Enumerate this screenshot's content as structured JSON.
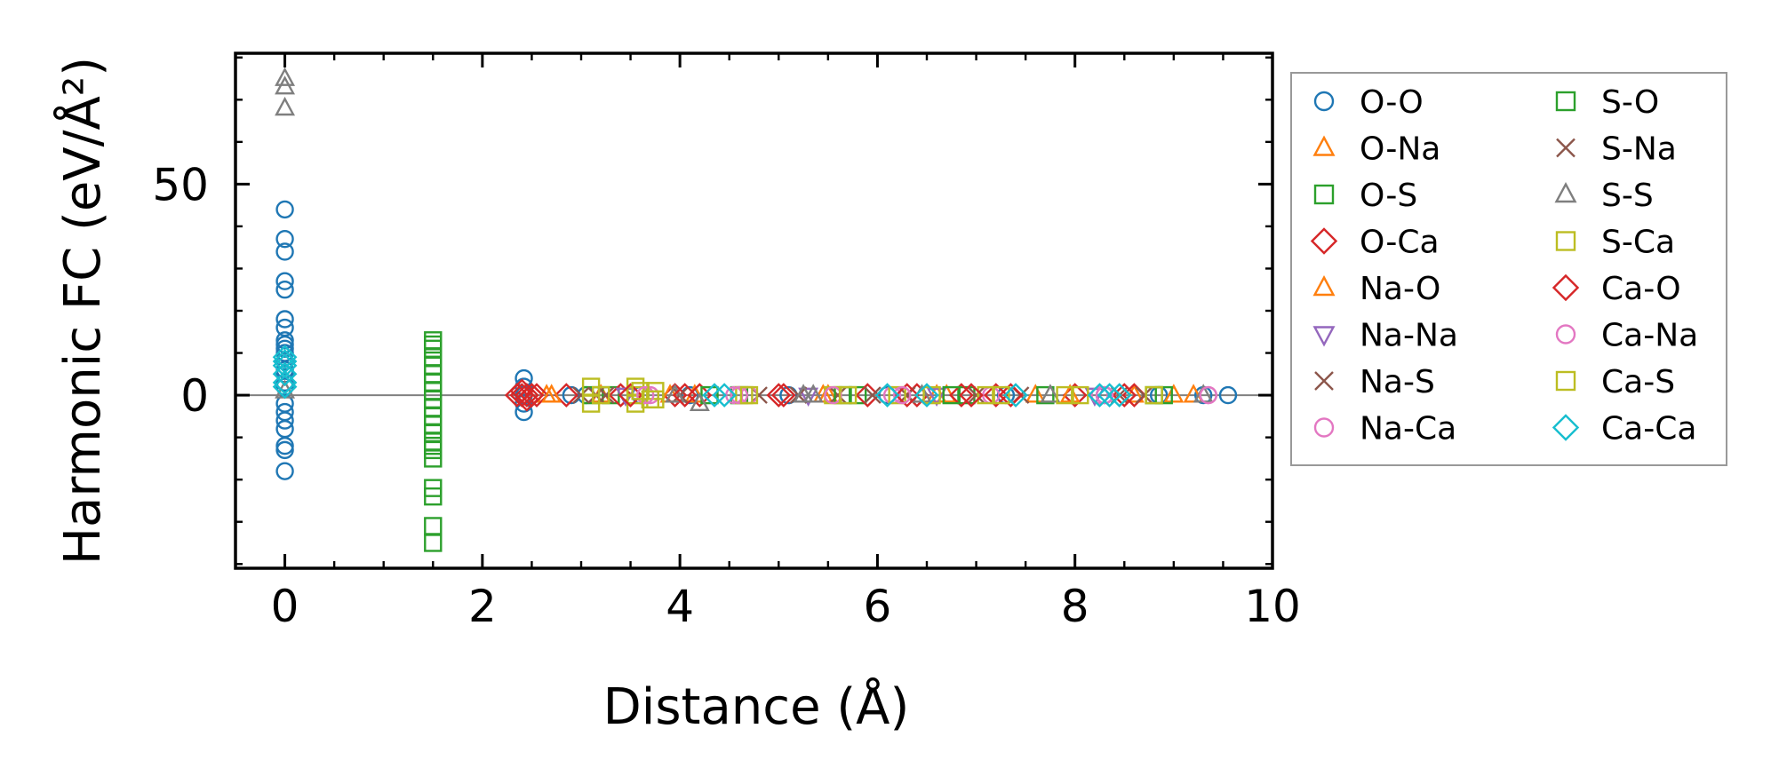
{
  "chart_data": {
    "type": "scatter",
    "xlabel": "Distance (Å)",
    "ylabel": "Harmonic FC (eV/Å²)",
    "xlim": [
      -0.5,
      10
    ],
    "ylim": [
      -41,
      81
    ],
    "xticks": [
      0,
      2,
      4,
      6,
      8,
      10
    ],
    "yticks": [
      0,
      50
    ],
    "grid": false,
    "legend_placement": "right, outside plot",
    "zero_line": true,
    "series": [
      {
        "name": "O-O",
        "marker": "circle",
        "color": "#1f77b4",
        "points": [
          [
            0,
            44
          ],
          [
            0,
            37
          ],
          [
            0,
            34
          ],
          [
            0,
            27
          ],
          [
            0,
            25
          ],
          [
            0,
            18
          ],
          [
            0,
            16
          ],
          [
            0,
            13
          ],
          [
            0,
            12
          ],
          [
            0,
            11
          ],
          [
            0,
            10
          ],
          [
            0,
            8
          ],
          [
            0,
            6
          ],
          [
            0,
            5
          ],
          [
            0,
            3
          ],
          [
            0,
            2
          ],
          [
            0,
            -2
          ],
          [
            0,
            -4
          ],
          [
            0,
            -6
          ],
          [
            0,
            -8
          ],
          [
            0,
            -12
          ],
          [
            0,
            -13
          ],
          [
            0,
            -18
          ],
          [
            2.42,
            4
          ],
          [
            2.42,
            2
          ],
          [
            2.42,
            0
          ],
          [
            2.42,
            -2
          ],
          [
            2.42,
            -4
          ],
          [
            2.9,
            0
          ],
          [
            3.05,
            0
          ],
          [
            3.6,
            0
          ],
          [
            4.1,
            0
          ],
          [
            5.1,
            0
          ],
          [
            6.1,
            0
          ],
          [
            7.3,
            0
          ],
          [
            8.3,
            0
          ],
          [
            8.85,
            0
          ],
          [
            9.3,
            0
          ],
          [
            9.55,
            0
          ]
        ]
      },
      {
        "name": "O-Na",
        "marker": "triangle-up",
        "color": "#ff7f0e",
        "points": [
          [
            2.65,
            0
          ],
          [
            3.2,
            0
          ],
          [
            4.15,
            0
          ],
          [
            5.45,
            0
          ],
          [
            6.7,
            0
          ],
          [
            7.6,
            0
          ],
          [
            8.6,
            0
          ],
          [
            9.2,
            0
          ]
        ]
      },
      {
        "name": "O-S",
        "marker": "square",
        "color": "#2ca02c",
        "points": [
          [
            1.5,
            13
          ],
          [
            1.5,
            11
          ],
          [
            1.5,
            9
          ],
          [
            1.5,
            7
          ],
          [
            1.5,
            5
          ],
          [
            1.5,
            3
          ],
          [
            1.5,
            1
          ],
          [
            1.5,
            -1
          ],
          [
            1.5,
            -3
          ],
          [
            1.5,
            -5
          ],
          [
            1.5,
            -7
          ],
          [
            1.5,
            -9
          ],
          [
            1.5,
            -11
          ],
          [
            1.5,
            -13
          ],
          [
            1.5,
            -15
          ],
          [
            1.5,
            -22
          ],
          [
            1.5,
            -24
          ],
          [
            1.5,
            -31
          ],
          [
            1.5,
            -35
          ],
          [
            3.3,
            0
          ],
          [
            4.6,
            0
          ],
          [
            5.8,
            0
          ],
          [
            6.9,
            0
          ],
          [
            7.7,
            0
          ],
          [
            8.8,
            0
          ]
        ]
      },
      {
        "name": "O-Ca",
        "marker": "diamond",
        "color": "#d62728",
        "points": [
          [
            2.35,
            0
          ],
          [
            2.4,
            0
          ],
          [
            2.45,
            0
          ],
          [
            2.5,
            0
          ],
          [
            2.55,
            0
          ],
          [
            2.85,
            0
          ],
          [
            3.4,
            0
          ],
          [
            3.95,
            0
          ],
          [
            4.2,
            0
          ],
          [
            5.0,
            0
          ],
          [
            5.9,
            0
          ],
          [
            6.4,
            0
          ],
          [
            6.85,
            0
          ],
          [
            7.2,
            0
          ],
          [
            8.0,
            0
          ],
          [
            8.6,
            0
          ]
        ]
      },
      {
        "name": "Na-O",
        "marker": "triangle-up",
        "color": "#ff7f0e",
        "points": [
          [
            2.7,
            0
          ],
          [
            3.9,
            0
          ],
          [
            5.5,
            0
          ],
          [
            6.6,
            0
          ],
          [
            7.95,
            0
          ],
          [
            9.0,
            0
          ]
        ]
      },
      {
        "name": "Na-Na",
        "marker": "triangle-down",
        "color": "#9467bd",
        "points": [
          [
            3.45,
            0
          ],
          [
            5.3,
            0
          ],
          [
            6.6,
            0
          ],
          [
            8.2,
            0
          ]
        ]
      },
      {
        "name": "Na-S",
        "marker": "x",
        "color": "#8c564b",
        "points": [
          [
            3.0,
            0
          ],
          [
            3.25,
            0
          ],
          [
            4.8,
            0
          ],
          [
            5.6,
            0
          ],
          [
            6.3,
            0
          ],
          [
            7.45,
            0
          ],
          [
            8.7,
            0
          ]
        ]
      },
      {
        "name": "Na-Ca",
        "marker": "circle",
        "color": "#e377c2",
        "points": [
          [
            3.7,
            0
          ],
          [
            4.55,
            0
          ],
          [
            4.7,
            0
          ],
          [
            6.15,
            0
          ],
          [
            7.15,
            0
          ],
          [
            8.25,
            0
          ],
          [
            9.35,
            0
          ]
        ]
      },
      {
        "name": "S-O",
        "marker": "square",
        "color": "#2ca02c",
        "points": [
          [
            1.5,
            12
          ],
          [
            1.5,
            -12
          ],
          [
            3.1,
            0
          ],
          [
            4.3,
            0
          ],
          [
            5.65,
            0
          ],
          [
            6.75,
            0
          ],
          [
            8.9,
            0
          ]
        ]
      },
      {
        "name": "S-Na",
        "marker": "x",
        "color": "#8c564b",
        "points": [
          [
            3.15,
            0
          ],
          [
            4.0,
            0
          ],
          [
            5.2,
            0
          ],
          [
            5.95,
            0
          ],
          [
            7.0,
            0
          ],
          [
            8.45,
            0
          ]
        ]
      },
      {
        "name": "S-S",
        "marker": "triangle-up",
        "color": "#7f7f7f",
        "points": [
          [
            0,
            75
          ],
          [
            0,
            73
          ],
          [
            0,
            68
          ],
          [
            0,
            1
          ],
          [
            3.95,
            0
          ],
          [
            4.2,
            -2
          ],
          [
            5.25,
            0
          ],
          [
            5.35,
            0
          ],
          [
            6.45,
            0
          ],
          [
            7.75,
            0
          ],
          [
            9.3,
            0
          ]
        ]
      },
      {
        "name": "S-Ca",
        "marker": "square",
        "color": "#bcbd22",
        "points": [
          [
            3.1,
            2
          ],
          [
            3.1,
            -2
          ],
          [
            3.55,
            2
          ],
          [
            3.55,
            0
          ],
          [
            3.55,
            -2
          ],
          [
            3.75,
            1
          ],
          [
            3.75,
            -1
          ],
          [
            4.65,
            0
          ],
          [
            5.55,
            0
          ],
          [
            6.2,
            0
          ],
          [
            7.1,
            0
          ],
          [
            7.9,
            0
          ],
          [
            8.8,
            0
          ]
        ]
      },
      {
        "name": "Ca-O",
        "marker": "diamond",
        "color": "#d62728",
        "points": [
          [
            2.4,
            1
          ],
          [
            2.45,
            -1
          ],
          [
            2.5,
            0
          ],
          [
            3.5,
            0
          ],
          [
            4.05,
            0
          ],
          [
            5.05,
            0
          ],
          [
            6.3,
            0
          ],
          [
            6.95,
            0
          ],
          [
            7.35,
            0
          ],
          [
            8.5,
            0
          ]
        ]
      },
      {
        "name": "Ca-Na",
        "marker": "circle",
        "color": "#e377c2",
        "points": [
          [
            3.65,
            0
          ],
          [
            4.6,
            0
          ],
          [
            5.55,
            0
          ],
          [
            6.25,
            0
          ],
          [
            8.3,
            0
          ],
          [
            9.35,
            0
          ]
        ]
      },
      {
        "name": "Ca-S",
        "marker": "square",
        "color": "#bcbd22",
        "points": [
          [
            3.2,
            0
          ],
          [
            3.6,
            1
          ],
          [
            3.7,
            -1
          ],
          [
            4.7,
            0
          ],
          [
            5.7,
            0
          ],
          [
            6.55,
            0
          ],
          [
            7.25,
            0
          ],
          [
            8.05,
            0
          ]
        ]
      },
      {
        "name": "Ca-Ca",
        "marker": "diamond",
        "color": "#17becf",
        "points": [
          [
            0,
            9
          ],
          [
            0,
            8
          ],
          [
            0,
            7
          ],
          [
            0,
            5
          ],
          [
            0,
            3
          ],
          [
            0,
            2
          ],
          [
            4.35,
            0
          ],
          [
            4.45,
            0
          ],
          [
            6.1,
            0
          ],
          [
            6.5,
            0
          ],
          [
            7.4,
            0
          ],
          [
            8.25,
            0
          ],
          [
            8.35,
            0
          ],
          [
            8.45,
            0
          ]
        ]
      }
    ]
  }
}
